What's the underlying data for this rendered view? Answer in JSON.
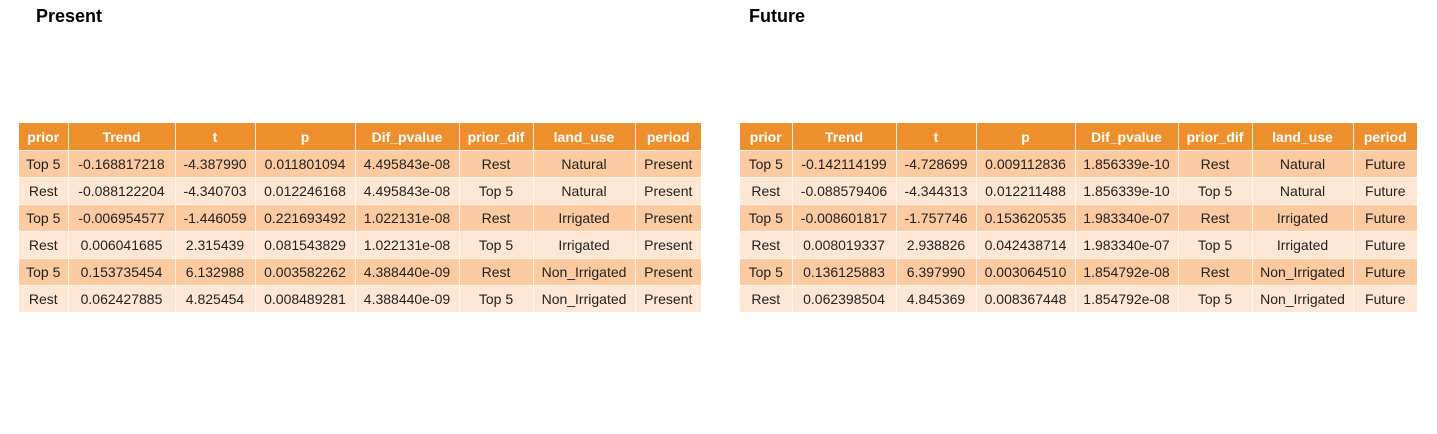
{
  "chart_data": [
    {
      "type": "table",
      "title": "Present",
      "columns": [
        "prior",
        "Trend",
        "t",
        "p",
        "Dif_pvalue",
        "prior_dif",
        "land_use",
        "period"
      ],
      "rows": [
        [
          "Top 5",
          "-0.168817218",
          "-4.387990",
          "0.011801094",
          "4.495843e-08",
          "Rest",
          "Natural",
          "Present"
        ],
        [
          "Rest",
          "-0.088122204",
          "-4.340703",
          "0.012246168",
          "4.495843e-08",
          "Top 5",
          "Natural",
          "Present"
        ],
        [
          "Top 5",
          "-0.006954577",
          "-1.446059",
          "0.221693492",
          "1.022131e-08",
          "Rest",
          "Irrigated",
          "Present"
        ],
        [
          "Rest",
          "0.006041685",
          "2.315439",
          "0.081543829",
          "1.022131e-08",
          "Top 5",
          "Irrigated",
          "Present"
        ],
        [
          "Top 5",
          "0.153735454",
          "6.132988",
          "0.003582262",
          "4.388440e-09",
          "Rest",
          "Non_Irrigated",
          "Present"
        ],
        [
          "Rest",
          "0.062427885",
          "4.825454",
          "0.008489281",
          "4.388440e-09",
          "Top 5",
          "Non_Irrigated",
          "Present"
        ]
      ]
    },
    {
      "type": "table",
      "title": "Future",
      "columns": [
        "prior",
        "Trend",
        "t",
        "p",
        "Dif_pvalue",
        "prior_dif",
        "land_use",
        "period"
      ],
      "rows": [
        [
          "Top 5",
          "-0.142114199",
          "-4.728699",
          "0.009112836",
          "1.856339e-10",
          "Rest",
          "Natural",
          "Future"
        ],
        [
          "Rest",
          "-0.088579406",
          "-4.344313",
          "0.012211488",
          "1.856339e-10",
          "Top 5",
          "Natural",
          "Future"
        ],
        [
          "Top 5",
          "-0.008601817",
          "-1.757746",
          "0.153620535",
          "1.983340e-07",
          "Rest",
          "Irrigated",
          "Future"
        ],
        [
          "Rest",
          "0.008019337",
          "2.938826",
          "0.042438714",
          "1.983340e-07",
          "Top 5",
          "Irrigated",
          "Future"
        ],
        [
          "Top 5",
          "0.136125883",
          "6.397990",
          "0.003064510",
          "1.854792e-08",
          "Rest",
          "Non_Irrigated",
          "Future"
        ],
        [
          "Rest",
          "0.062398504",
          "4.845369",
          "0.008367448",
          "1.854792e-08",
          "Top 5",
          "Non_Irrigated",
          "Future"
        ]
      ]
    }
  ],
  "colors": {
    "header_bg": "#ee8f2e",
    "header_text": "#ffffff",
    "row_odd": "#fbcaa0",
    "row_even": "#fde6d3"
  }
}
